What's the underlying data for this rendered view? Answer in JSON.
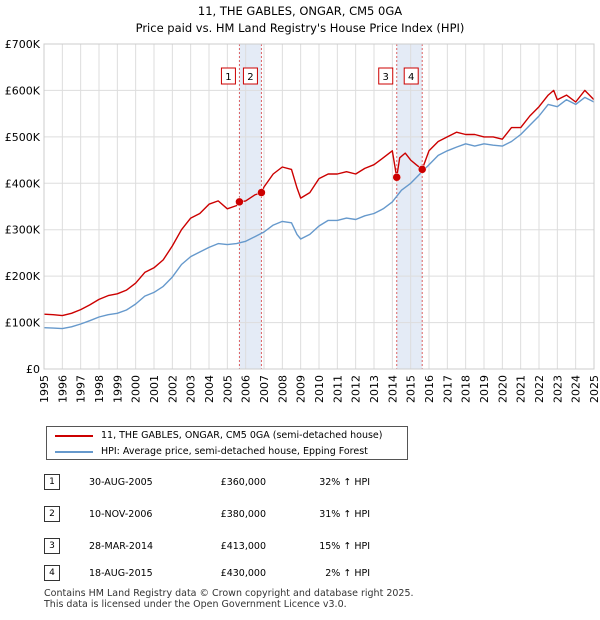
{
  "colors": {
    "property": "#cc0000",
    "hpi": "#6699cc",
    "band": "#dde6f4",
    "grid": "#dddddd",
    "vline": "#cc0000"
  },
  "chart_data": {
    "type": "line",
    "title": "11, THE GABLES, ONGAR, CM5 0GA",
    "subtitle": "Price paid vs. HM Land Registry's House Price Index (HPI)",
    "xlim": [
      1995,
      2025
    ],
    "ylim": [
      0,
      700000
    ],
    "y_ticks": [
      {
        "value": 0,
        "label": "£0"
      },
      {
        "value": 100000,
        "label": "£100K"
      },
      {
        "value": 200000,
        "label": "£200K"
      },
      {
        "value": 300000,
        "label": "£300K"
      },
      {
        "value": 400000,
        "label": "£400K"
      },
      {
        "value": 500000,
        "label": "£500K"
      },
      {
        "value": 600000,
        "label": "£600K"
      },
      {
        "value": 700000,
        "label": "£700K"
      }
    ],
    "x_ticks": [
      "1995",
      "1996",
      "1997",
      "1998",
      "1999",
      "2000",
      "2001",
      "2002",
      "2003",
      "2004",
      "2005",
      "2006",
      "2007",
      "2008",
      "2009",
      "2010",
      "2011",
      "2012",
      "2013",
      "2014",
      "2015",
      "2016",
      "2017",
      "2018",
      "2019",
      "2020",
      "2021",
      "2022",
      "2023",
      "2024",
      "2025"
    ],
    "series": [
      {
        "name": "11, THE GABLES, ONGAR, CM5 0GA (semi-detached house)",
        "x": [
          1995.0,
          1995.5,
          1996.0,
          1996.5,
          1997.0,
          1997.5,
          1998.0,
          1998.5,
          1999.0,
          1999.5,
          2000.0,
          2000.5,
          2001.0,
          2001.5,
          2002.0,
          2002.5,
          2003.0,
          2003.5,
          2004.0,
          2004.5,
          2005.0,
          2005.5,
          2005.66,
          2006.0,
          2006.5,
          2006.86,
          2007.0,
          2007.5,
          2008.0,
          2008.5,
          2008.8,
          2009.0,
          2009.5,
          2010.0,
          2010.5,
          2011.0,
          2011.5,
          2012.0,
          2012.5,
          2013.0,
          2013.5,
          2014.0,
          2014.24,
          2014.4,
          2014.7,
          2015.0,
          2015.3,
          2015.63,
          2016.0,
          2016.5,
          2017.0,
          2017.5,
          2018.0,
          2018.5,
          2019.0,
          2019.5,
          2020.0,
          2020.5,
          2021.0,
          2021.5,
          2022.0,
          2022.5,
          2022.8,
          2023.0,
          2023.5,
          2024.0,
          2024.5,
          2025.0
        ],
        "values": [
          118000,
          117000,
          115000,
          120000,
          128000,
          138000,
          150000,
          158000,
          162000,
          170000,
          185000,
          208000,
          218000,
          235000,
          265000,
          300000,
          325000,
          335000,
          355000,
          362000,
          345000,
          352000,
          360000,
          362000,
          375000,
          380000,
          392000,
          420000,
          435000,
          430000,
          390000,
          368000,
          380000,
          410000,
          420000,
          420000,
          425000,
          420000,
          432000,
          440000,
          455000,
          470000,
          413000,
          455000,
          465000,
          450000,
          440000,
          430000,
          470000,
          490000,
          500000,
          510000,
          505000,
          505000,
          500000,
          500000,
          495000,
          520000,
          520000,
          545000,
          565000,
          590000,
          600000,
          580000,
          590000,
          575000,
          600000,
          580000
        ]
      },
      {
        "name": "HPI: Average price, semi-detached house, Epping Forest",
        "x": [
          1995.0,
          1995.5,
          1996.0,
          1996.5,
          1997.0,
          1997.5,
          1998.0,
          1998.5,
          1999.0,
          1999.5,
          2000.0,
          2000.5,
          2001.0,
          2001.5,
          2002.0,
          2002.5,
          2003.0,
          2003.5,
          2004.0,
          2004.5,
          2005.0,
          2005.5,
          2006.0,
          2006.5,
          2007.0,
          2007.5,
          2008.0,
          2008.5,
          2008.8,
          2009.0,
          2009.5,
          2010.0,
          2010.5,
          2011.0,
          2011.5,
          2012.0,
          2012.5,
          2013.0,
          2013.5,
          2014.0,
          2014.5,
          2015.0,
          2015.5,
          2016.0,
          2016.5,
          2017.0,
          2017.5,
          2018.0,
          2018.5,
          2019.0,
          2019.5,
          2020.0,
          2020.5,
          2021.0,
          2021.5,
          2022.0,
          2022.5,
          2023.0,
          2023.5,
          2024.0,
          2024.5,
          2025.0
        ],
        "values": [
          89000,
          88000,
          87000,
          91000,
          97000,
          104000,
          112000,
          117000,
          120000,
          127000,
          140000,
          157000,
          165000,
          178000,
          198000,
          225000,
          242000,
          252000,
          262000,
          270000,
          268000,
          270000,
          275000,
          285000,
          295000,
          310000,
          318000,
          315000,
          290000,
          280000,
          290000,
          308000,
          320000,
          320000,
          325000,
          322000,
          330000,
          335000,
          345000,
          360000,
          385000,
          400000,
          420000,
          440000,
          460000,
          470000,
          478000,
          485000,
          480000,
          485000,
          482000,
          480000,
          490000,
          505000,
          525000,
          545000,
          570000,
          565000,
          580000,
          570000,
          585000,
          575000
        ]
      }
    ],
    "sales": [
      {
        "id": "1",
        "x": 2005.66,
        "value": 360000
      },
      {
        "id": "2",
        "x": 2006.86,
        "value": 380000
      },
      {
        "id": "3",
        "x": 2014.24,
        "value": 413000
      },
      {
        "id": "4",
        "x": 2015.63,
        "value": 430000
      }
    ],
    "bands": [
      [
        2005.66,
        2006.86
      ],
      [
        2014.24,
        2015.63
      ]
    ]
  },
  "legend": {
    "property_label": "11, THE GABLES, ONGAR, CM5 0GA (semi-detached house)",
    "hpi_label": "HPI: Average price, semi-detached house, Epping Forest"
  },
  "sales_table": [
    {
      "num": "1",
      "date": "30-AUG-2005",
      "price": "£360,000",
      "hpi": "32% ↑ HPI"
    },
    {
      "num": "2",
      "date": "10-NOV-2006",
      "price": "£380,000",
      "hpi": "31% ↑ HPI"
    },
    {
      "num": "3",
      "date": "28-MAR-2014",
      "price": "£413,000",
      "hpi": "15% ↑ HPI"
    },
    {
      "num": "4",
      "date": "18-AUG-2015",
      "price": "£430,000",
      "hpi": "2% ↑ HPI"
    }
  ],
  "footer": {
    "line1": "Contains HM Land Registry data © Crown copyright and database right 2025.",
    "line2": "This data is licensed under the Open Government Licence v3.0."
  }
}
